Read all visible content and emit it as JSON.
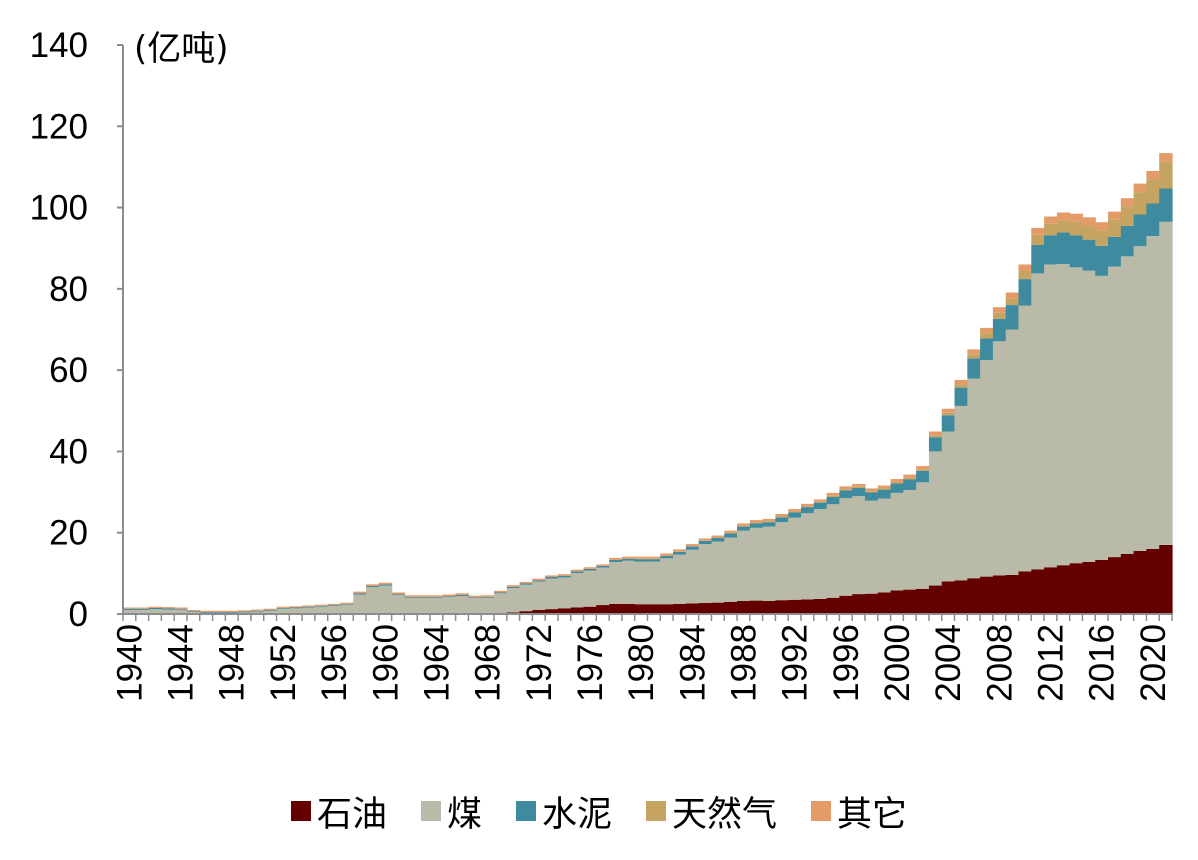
{
  "chart_data": {
    "type": "area",
    "ylabel": "(亿吨)",
    "ylim": [
      0,
      140
    ],
    "yticks": [
      0,
      20,
      40,
      60,
      80,
      100,
      120,
      140
    ],
    "xlim": [
      1940,
      2021
    ],
    "xticks": [
      1940,
      1944,
      1948,
      1952,
      1956,
      1960,
      1964,
      1968,
      1972,
      1976,
      1980,
      1984,
      1988,
      1992,
      1996,
      2000,
      2004,
      2008,
      2012,
      2016,
      2020
    ],
    "stacked": true,
    "grid": false,
    "legend_position": "bottom",
    "x": [
      1940,
      1941,
      1942,
      1943,
      1944,
      1945,
      1946,
      1947,
      1948,
      1949,
      1950,
      1951,
      1952,
      1953,
      1954,
      1955,
      1956,
      1957,
      1958,
      1959,
      1960,
      1961,
      1962,
      1963,
      1964,
      1965,
      1966,
      1967,
      1968,
      1969,
      1970,
      1971,
      1972,
      1973,
      1974,
      1975,
      1976,
      1977,
      1978,
      1979,
      1980,
      1981,
      1982,
      1983,
      1984,
      1985,
      1986,
      1987,
      1988,
      1989,
      1990,
      1991,
      1992,
      1993,
      1994,
      1995,
      1996,
      1997,
      1998,
      1999,
      2000,
      2001,
      2002,
      2003,
      2004,
      2005,
      2006,
      2007,
      2008,
      2009,
      2010,
      2011,
      2012,
      2013,
      2014,
      2015,
      2016,
      2017,
      2018,
      2019,
      2020,
      2021
    ],
    "series": [
      {
        "name": "石油",
        "color": "#640000",
        "values": [
          0,
          0,
          0,
          0,
          0,
          0,
          0,
          0,
          0,
          0,
          0,
          0,
          0,
          0,
          0,
          0,
          0,
          0,
          0,
          0,
          0,
          0,
          0,
          0,
          0,
          0,
          0,
          0,
          0,
          0.1,
          0.4,
          0.7,
          1.0,
          1.2,
          1.4,
          1.6,
          1.8,
          2.2,
          2.5,
          2.5,
          2.4,
          2.4,
          2.4,
          2.5,
          2.6,
          2.7,
          2.8,
          3.0,
          3.2,
          3.3,
          3.2,
          3.4,
          3.5,
          3.6,
          3.7,
          4.0,
          4.5,
          4.9,
          5.0,
          5.3,
          5.8,
          6.0,
          6.2,
          7.0,
          8.0,
          8.3,
          8.8,
          9.2,
          9.5,
          9.6,
          10.5,
          11.0,
          11.5,
          12.0,
          12.5,
          12.8,
          13.3,
          14.0,
          14.8,
          15.5,
          16.0,
          17.0
        ]
      },
      {
        "name": "煤",
        "color": "#babaa8",
        "values": [
          1.0,
          1.0,
          1.2,
          1.1,
          1.1,
          0.5,
          0.3,
          0.3,
          0.3,
          0.4,
          0.6,
          0.8,
          1.3,
          1.4,
          1.6,
          1.8,
          2.0,
          2.3,
          4.8,
          6.6,
          7.0,
          4.7,
          4.0,
          4.0,
          4.0,
          4.2,
          4.4,
          3.9,
          4.0,
          5.0,
          6.0,
          6.5,
          7.0,
          7.5,
          7.6,
          8.5,
          8.9,
          9.2,
          10.3,
          10.6,
          10.5,
          10.5,
          11.3,
          12.1,
          13.2,
          14.5,
          15.0,
          15.8,
          17.3,
          17.9,
          18.3,
          19.2,
          20.2,
          21.2,
          22.1,
          23.0,
          24.0,
          24.1,
          22.9,
          23.1,
          24.0,
          24.5,
          26.2,
          33.0,
          36.9,
          42.9,
          49.1,
          53.3,
          57.6,
          60.4,
          65.4,
          72.8,
          74.5,
          74.1,
          72.8,
          71.7,
          69.9,
          71.5,
          73.2,
          75.0,
          77.0,
          79.5
        ]
      },
      {
        "name": "水泥",
        "color": "#3e8a9e",
        "values": [
          0.3,
          0.3,
          0.3,
          0.3,
          0.2,
          0.2,
          0.2,
          0.2,
          0.2,
          0.2,
          0.2,
          0.2,
          0.2,
          0.2,
          0.2,
          0.2,
          0.2,
          0.2,
          0.3,
          0.3,
          0.3,
          0.2,
          0.2,
          0.2,
          0.2,
          0.2,
          0.3,
          0.2,
          0.2,
          0.2,
          0.3,
          0.3,
          0.3,
          0.4,
          0.4,
          0.4,
          0.4,
          0.4,
          0.5,
          0.5,
          0.6,
          0.6,
          0.6,
          0.7,
          0.8,
          0.8,
          0.9,
          1.0,
          1.0,
          1.1,
          1.1,
          1.2,
          1.3,
          1.5,
          1.6,
          1.8,
          1.9,
          2.0,
          2.0,
          2.2,
          2.3,
          2.6,
          2.8,
          3.5,
          4.0,
          4.5,
          5.0,
          5.3,
          5.5,
          6.0,
          6.5,
          7.0,
          7.2,
          7.8,
          7.9,
          7.6,
          7.4,
          7.3,
          7.5,
          7.8,
          8.0,
          8.2
        ]
      },
      {
        "name": "天然气",
        "color": "#c4a460",
        "values": [
          0,
          0,
          0,
          0,
          0,
          0,
          0,
          0,
          0,
          0,
          0,
          0,
          0,
          0,
          0,
          0,
          0,
          0,
          0,
          0,
          0,
          0,
          0,
          0,
          0,
          0,
          0,
          0,
          0,
          0,
          0,
          0,
          0,
          0,
          0,
          0,
          0,
          0,
          0,
          0,
          0.1,
          0.1,
          0.1,
          0.1,
          0.1,
          0.1,
          0.1,
          0.2,
          0.2,
          0.2,
          0.2,
          0.2,
          0.2,
          0.2,
          0.2,
          0.3,
          0.3,
          0.3,
          0.3,
          0.3,
          0.4,
          0.4,
          0.4,
          0.5,
          0.6,
          0.8,
          1.0,
          1.3,
          1.5,
          1.6,
          2.0,
          2.5,
          2.8,
          3.0,
          3.3,
          3.5,
          3.8,
          4.2,
          4.8,
          5.5,
          6.0,
          6.6
        ]
      },
      {
        "name": "其它",
        "color": "#e39b6a",
        "values": [
          0.3,
          0.3,
          0.3,
          0.3,
          0.3,
          0.3,
          0.3,
          0.3,
          0.3,
          0.3,
          0.3,
          0.3,
          0.3,
          0.3,
          0.3,
          0.3,
          0.3,
          0.3,
          0.4,
          0.4,
          0.4,
          0.4,
          0.4,
          0.4,
          0.4,
          0.4,
          0.4,
          0.4,
          0.4,
          0.4,
          0.4,
          0.4,
          0.4,
          0.4,
          0.4,
          0.4,
          0.4,
          0.4,
          0.5,
          0.5,
          0.5,
          0.5,
          0.5,
          0.5,
          0.5,
          0.5,
          0.5,
          0.5,
          0.6,
          0.6,
          0.6,
          0.6,
          0.6,
          0.6,
          0.6,
          0.7,
          0.7,
          0.7,
          0.7,
          0.7,
          0.7,
          0.8,
          0.8,
          0.9,
          1.0,
          1.1,
          1.2,
          1.3,
          1.4,
          1.5,
          1.6,
          1.7,
          1.8,
          1.9,
          2.0,
          2.0,
          2.0,
          2.0,
          2.0,
          2.1,
          2.0,
          2.1
        ]
      }
    ]
  }
}
